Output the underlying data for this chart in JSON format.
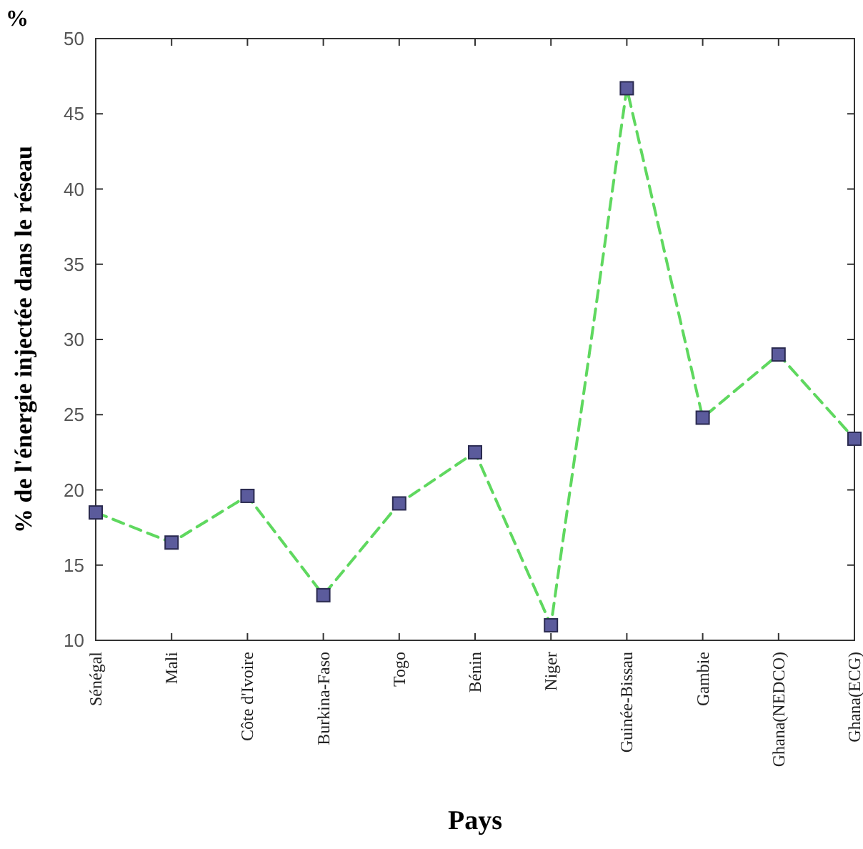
{
  "chart_data": {
    "type": "line",
    "xlabel": "Pays",
    "ylabel": "% de l'énergie injectée dans le réseau",
    "annotations": [
      "%"
    ],
    "categories": [
      "Sénégal",
      "Mali",
      "Côte d'Ivoire",
      "Burkina-Faso",
      "Togo",
      "Bénin",
      "Niger",
      "Guinée-Bissau",
      "Gambie",
      "Ghana(NEDCO)",
      "Ghana(ECG)"
    ],
    "series": [
      {
        "color": "#5fd85f",
        "colors": [
          "#5b5b9c",
          "#5b5b9c",
          "#5b5b9c",
          "#5b5b9c",
          "#5b5b9c",
          "#5b5b9c",
          "#5b5b9c",
          "#5b5b9c",
          "#5b5b9c",
          "#5b5b9c",
          "#5b5b9c"
        ],
        "values": [
          18.5,
          16.5,
          19.6,
          13,
          19.1,
          22.5,
          11,
          46.7,
          24.8,
          29,
          23.4
        ]
      }
    ],
    "ylim": [
      10,
      50
    ],
    "yticks": [
      10,
      15,
      20,
      25,
      30,
      35,
      40,
      45,
      50
    ],
    "grid": false,
    "marker": "square",
    "line_style": "dashed"
  }
}
